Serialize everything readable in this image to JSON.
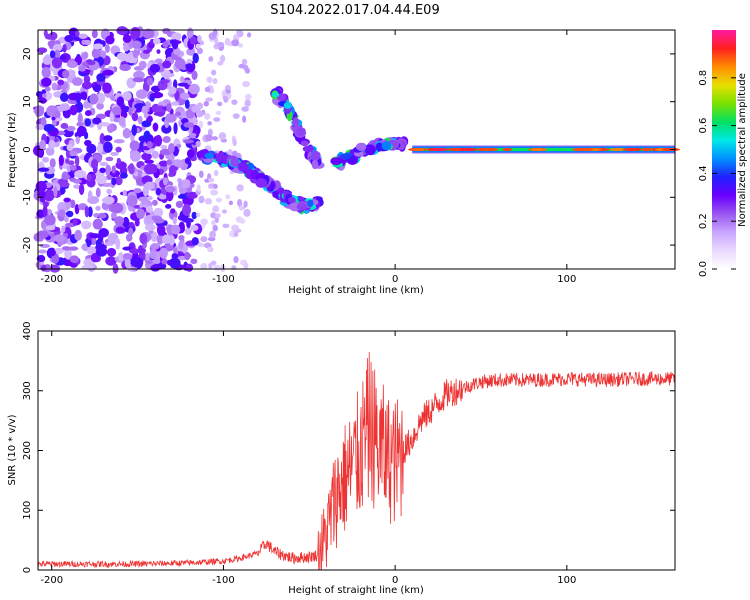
{
  "figure_title": "S104.2022.017.04.44.E09",
  "colors": {
    "snr_line": "#ee3333",
    "colormap": [
      "#ffffff",
      "#e9d9ff",
      "#c9a6ff",
      "#9a55f0",
      "#6a00ff",
      "#2020ff",
      "#0090ff",
      "#00e8e8",
      "#00e060",
      "#7ae000",
      "#e8e000",
      "#ff8c00",
      "#ff2020",
      "#ff1aa0"
    ]
  },
  "chart_data": [
    {
      "type": "heatmap",
      "title": "",
      "xlabel": "Height of straight line (km)",
      "ylabel": "Frequency (Hz)",
      "xlim": [
        -208,
        163
      ],
      "ylim": [
        -25,
        25
      ],
      "xticks": [
        -200,
        -100,
        0,
        100
      ],
      "yticks": [
        -20,
        -10,
        0,
        10,
        20
      ],
      "colorbar": {
        "label": "Normalized spectral amplitude",
        "range": [
          0,
          1
        ],
        "ticks": [
          0.0,
          0.2,
          0.4,
          0.6,
          0.8
        ]
      },
      "features": {
        "noise_region_x": [
          -208,
          -115
        ],
        "scattered_region_x": [
          -115,
          -95
        ],
        "diagonal_track": [
          [
            -115,
            -1
          ],
          [
            -100,
            -2
          ],
          [
            -90,
            -3.5
          ],
          [
            -80,
            -5.5
          ],
          [
            -70,
            -8
          ],
          [
            -60,
            -11
          ],
          [
            -52,
            -12
          ],
          [
            -45,
            -11
          ]
        ],
        "upper_track": [
          [
            -70,
            12
          ],
          [
            -65,
            10
          ],
          [
            -60,
            7
          ],
          [
            -55,
            3
          ],
          [
            -50,
            0
          ],
          [
            -45,
            -3
          ]
        ],
        "transition_track": [
          [
            -35,
            -3
          ],
          [
            -28,
            -2
          ],
          [
            -20,
            0
          ],
          [
            -12,
            0.5
          ],
          [
            -5,
            1
          ],
          [
            0,
            1.5
          ],
          [
            5,
            1
          ]
        ],
        "constant_line": {
          "x_range": [
            10,
            163
          ],
          "frequency": 0
        }
      }
    },
    {
      "type": "line",
      "title": "",
      "xlabel": "Height of straight line (km)",
      "ylabel": "SNR (10 * v/v)",
      "xlim": [
        -208,
        163
      ],
      "ylim": [
        0,
        400
      ],
      "xticks": [
        -200,
        -100,
        0,
        100
      ],
      "yticks": [
        0,
        100,
        200,
        300,
        400
      ],
      "series": [
        {
          "x": [
            -208,
            -180,
            -150,
            -120,
            -100,
            -90,
            -80,
            -75,
            -70,
            -60,
            -50,
            -45,
            -40,
            -35,
            -30,
            -25,
            -20,
            -15,
            -10,
            -5,
            0,
            5,
            10,
            15,
            20,
            25,
            30,
            40,
            50,
            60,
            80,
            100,
            120,
            140,
            163
          ],
          "values": [
            10,
            10,
            10,
            12,
            15,
            20,
            28,
            45,
            30,
            20,
            22,
            25,
            60,
            120,
            150,
            170,
            200,
            240,
            210,
            190,
            180,
            200,
            220,
            250,
            265,
            280,
            295,
            305,
            315,
            318,
            318,
            320,
            318,
            320,
            320
          ]
        }
      ]
    }
  ]
}
